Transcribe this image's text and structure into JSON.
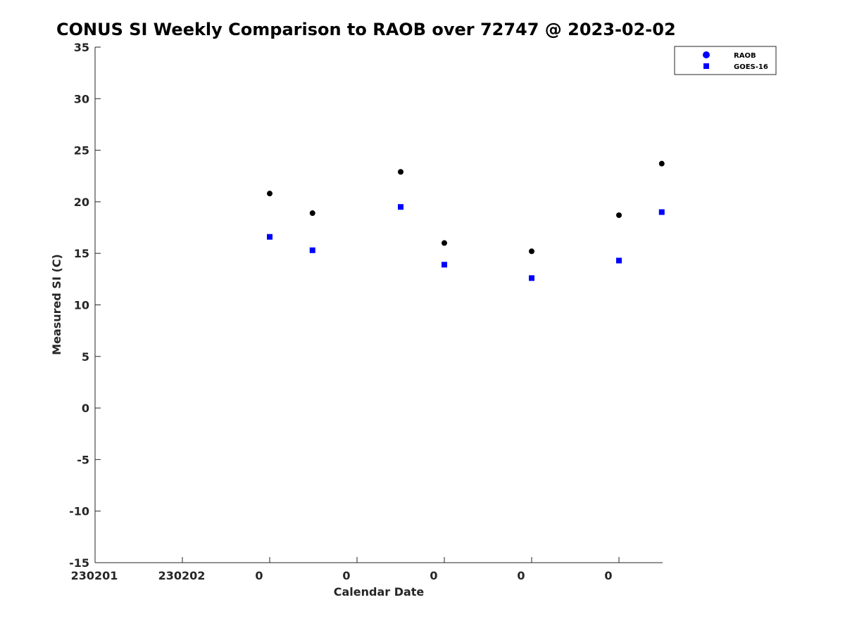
{
  "chart_data": {
    "type": "scatter",
    "title": "CONUS SI Weekly Comparison to RAOB over 72747 @ 2023-02-02",
    "xlabel": "Calendar Date",
    "ylabel": "Measured SI (C)",
    "ylim": [
      -15,
      35
    ],
    "yticks": [
      35,
      30,
      25,
      20,
      15,
      10,
      5,
      0,
      -5,
      -10,
      -15
    ],
    "xlim": [
      0,
      6.5
    ],
    "xticks": [
      {
        "x": 0,
        "label": "230201"
      },
      {
        "x": 1,
        "label": "230202"
      },
      {
        "x": 2,
        "label": "0"
      },
      {
        "x": 3,
        "label": "0"
      },
      {
        "x": 4,
        "label": "0"
      },
      {
        "x": 5,
        "label": "0"
      },
      {
        "x": 6,
        "label": "0"
      }
    ],
    "grid": false,
    "legend_position": "top-right",
    "series": [
      {
        "name": "RAOB",
        "marker": "circle",
        "color": "#000000",
        "legend_color": "#0000ff",
        "points": [
          {
            "x": 2.0,
            "y": 20.8
          },
          {
            "x": 2.49,
            "y": 18.9
          },
          {
            "x": 3.5,
            "y": 22.9
          },
          {
            "x": 4.0,
            "y": 16.0
          },
          {
            "x": 5.0,
            "y": 15.2
          },
          {
            "x": 6.0,
            "y": 18.7
          },
          {
            "x": 6.49,
            "y": 23.7
          }
        ]
      },
      {
        "name": "GOES-16",
        "marker": "square",
        "color": "#0000ff",
        "legend_color": "#0000ff",
        "points": [
          {
            "x": 2.0,
            "y": 16.6
          },
          {
            "x": 2.49,
            "y": 15.3
          },
          {
            "x": 3.5,
            "y": 19.5
          },
          {
            "x": 4.0,
            "y": 13.9
          },
          {
            "x": 5.0,
            "y": 12.6
          },
          {
            "x": 6.0,
            "y": 14.3
          },
          {
            "x": 6.49,
            "y": 19.0
          }
        ]
      }
    ]
  }
}
